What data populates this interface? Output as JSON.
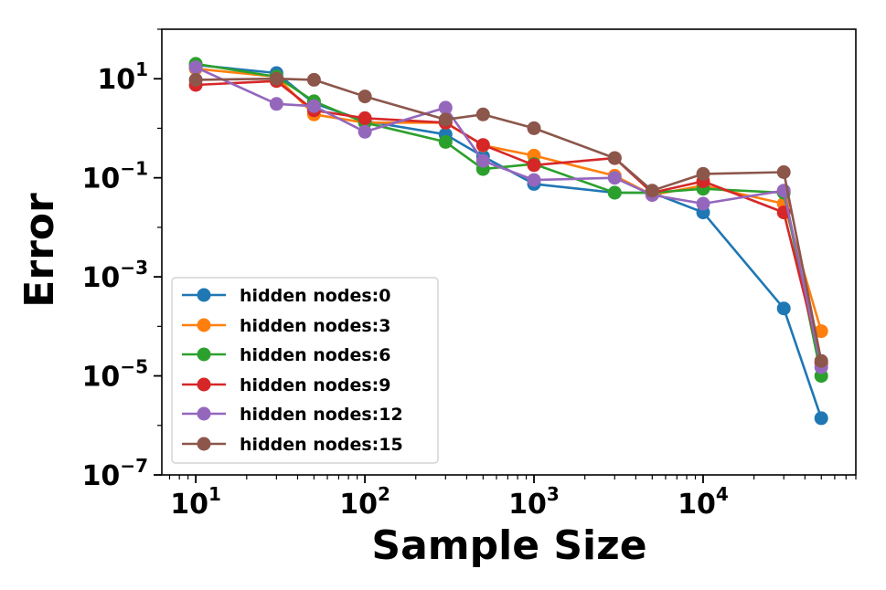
{
  "chart_data": {
    "type": "line",
    "xscale": "log",
    "yscale": "log",
    "xlabel": "Sample Size",
    "ylabel": "Error",
    "xlim": [
      6.3,
      80000
    ],
    "ylim": [
      1e-07,
      100
    ],
    "x": [
      10,
      30,
      50,
      100,
      300,
      500,
      1000,
      3000,
      5000,
      10000,
      30000,
      50000
    ],
    "xticks": [
      {
        "value": 10,
        "base": "10",
        "exp": "1"
      },
      {
        "value": 100,
        "base": "10",
        "exp": "2"
      },
      {
        "value": 1000,
        "base": "10",
        "exp": "3"
      },
      {
        "value": 10000,
        "base": "10",
        "exp": "4"
      }
    ],
    "yticks": [
      {
        "value": 10,
        "base": "10",
        "exp": "1"
      },
      {
        "value": 0.1,
        "base": "10",
        "exp": "−1"
      },
      {
        "value": 0.001,
        "base": "10",
        "exp": "−3"
      },
      {
        "value": 1e-05,
        "base": "10",
        "exp": "−5"
      },
      {
        "value": 1e-07,
        "base": "10",
        "exp": "−7"
      }
    ],
    "legend_position": "lower-left",
    "series": [
      {
        "name": "hidden nodes:0",
        "color": "#1f77b4",
        "values": [
          19,
          13,
          3.2,
          1.4,
          0.75,
          0.27,
          0.075,
          0.05,
          0.05,
          0.02,
          0.00023,
          1.4e-06
        ]
      },
      {
        "name": "hidden nodes:3",
        "color": "#ff7f0e",
        "values": [
          16,
          11,
          1.9,
          1.3,
          1.3,
          0.45,
          0.28,
          0.11,
          0.045,
          0.07,
          0.03,
          8e-05
        ]
      },
      {
        "name": "hidden nodes:6",
        "color": "#2ca02c",
        "values": [
          20,
          11,
          3.5,
          1.3,
          0.53,
          0.15,
          0.19,
          0.05,
          0.05,
          0.06,
          0.05,
          1e-05
        ]
      },
      {
        "name": "hidden nodes:9",
        "color": "#d62728",
        "values": [
          7.5,
          9,
          2.3,
          1.6,
          1.3,
          0.46,
          0.18,
          0.25,
          0.05,
          0.085,
          0.02,
          1.8e-05
        ]
      },
      {
        "name": "hidden nodes:12",
        "color": "#9467bd",
        "values": [
          17,
          3.1,
          2.8,
          0.85,
          2.6,
          0.22,
          0.09,
          0.1,
          0.045,
          0.03,
          0.055,
          1.5e-05
        ]
      },
      {
        "name": "hidden nodes:15",
        "color": "#8c564b",
        "values": [
          9.5,
          10,
          9.5,
          4.4,
          1.5,
          1.9,
          1.0,
          0.25,
          0.055,
          0.12,
          0.13,
          2e-05
        ]
      }
    ]
  }
}
